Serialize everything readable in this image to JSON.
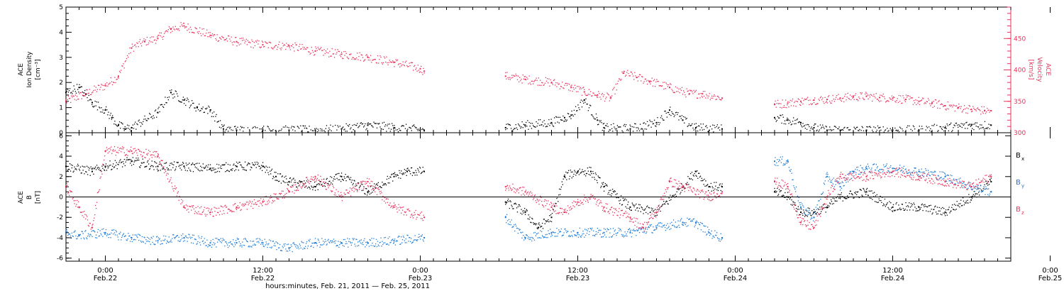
{
  "chart_data": [
    {
      "type": "scatter",
      "panel": "top",
      "ylabel_left": [
        "ACE",
        "Ion Density",
        "[cm⁻³]"
      ],
      "ylabel_right": [
        "ACE",
        "Velocity",
        "[km/s]"
      ],
      "ylim_left": [
        0,
        5
      ],
      "ylim_right": [
        300,
        500
      ],
      "yticks_left": [
        "0",
        "1",
        "2",
        "3",
        "4",
        "5"
      ],
      "yticks_right": [
        "300",
        "350",
        "400",
        "450"
      ],
      "xlim_hours": [
        -3,
        69
      ],
      "series": [
        {
          "axis": "right",
          "color": "#e8305a",
          "segments": [
            {
              "x": [
                -3,
                -1.5,
                0,
                1,
                2,
                3,
                4,
                5,
                6,
                8,
                10,
                12,
                14,
                16,
                18,
                20,
                22,
                24,
                24.3
              ],
              "y": [
                350,
                362,
                375,
                390,
                435,
                445,
                450,
                465,
                470,
                455,
                445,
                440,
                438,
                430,
                425,
                420,
                412,
                402,
                398
              ]
            },
            {
              "x": [
                30.5,
                32,
                34,
                35.5,
                36.5,
                37.5,
                38.5,
                39.5,
                40.5,
                41.5,
                43,
                44.5,
                45.5,
                47
              ],
              "y": [
                390,
                385,
                380,
                372,
                365,
                360,
                355,
                395,
                388,
                382,
                372,
                362,
                362,
                355
              ]
            },
            {
              "x": [
                51,
                52,
                53,
                54,
                55,
                56,
                57,
                58,
                59,
                60,
                61,
                62,
                63,
                64,
                65,
                66,
                67,
                67.5
              ],
              "y": [
                345,
                347,
                350,
                352,
                353,
                355,
                357,
                358,
                356,
                355,
                353,
                350,
                347,
                343,
                340,
                337,
                335,
                335
              ]
            }
          ]
        },
        {
          "axis": "left",
          "color": "#000000",
          "segments": [
            {
              "x": [
                -3,
                -2,
                -1,
                0,
                0.5,
                1,
                1.5,
                2,
                4,
                5,
                6,
                7,
                8,
                9,
                10,
                12,
                14,
                16,
                18,
                20,
                22,
                24.3
              ],
              "y": [
                1.6,
                1.8,
                1.2,
                0.9,
                0.6,
                0.3,
                0.15,
                0.2,
                0.8,
                1.6,
                1.3,
                1.0,
                0.9,
                0.15,
                0.1,
                0.1,
                0.1,
                0.1,
                0.15,
                0.3,
                0.2,
                0.1
              ]
            },
            {
              "x": [
                30.5,
                32,
                34,
                35,
                35.5,
                36.5,
                37.5,
                38,
                40,
                42,
                43,
                44,
                45,
                47
              ],
              "y": [
                0.2,
                0.3,
                0.4,
                0.6,
                0.7,
                1.3,
                0.5,
                0.2,
                0.15,
                0.4,
                0.9,
                0.5,
                0.2,
                0.15
              ]
            },
            {
              "x": [
                51,
                52,
                53,
                54,
                55,
                56,
                58,
                60,
                62,
                64,
                66,
                67.5
              ],
              "y": [
                0.6,
                0.5,
                0.4,
                0.2,
                0.1,
                0.1,
                0.1,
                0.1,
                0.1,
                0.2,
                0.3,
                0.3
              ]
            }
          ]
        }
      ]
    },
    {
      "type": "scatter",
      "panel": "bottom",
      "ylabel_left": [
        "ACE",
        "B",
        "[nT]"
      ],
      "ylim": [
        -6.3,
        6.3
      ],
      "yticks": [
        "-6",
        "-4",
        "-2",
        "0",
        "2",
        "4",
        "6"
      ],
      "zero_line": true,
      "xlim_hours": [
        -3,
        69
      ],
      "legend": [
        {
          "label": "B",
          "sub": "x",
          "color": "#000000"
        },
        {
          "label": "B",
          "sub": "y",
          "color": "#1a7ad6"
        },
        {
          "label": "B",
          "sub": "z",
          "color": "#e8305a"
        }
      ],
      "series": [
        {
          "name": "Bx",
          "color": "#000000",
          "segments": [
            {
              "x": [
                -3,
                -1,
                0,
                2,
                4,
                6,
                8,
                10,
                12,
                13,
                14,
                16,
                18,
                20,
                22,
                23,
                24.3
              ],
              "y": [
                3.0,
                2.5,
                3.0,
                3.5,
                3.0,
                3.0,
                2.8,
                3.0,
                3.0,
                2.0,
                1.5,
                1.0,
                2.0,
                0.5,
                2.0,
                2.5,
                2.5
              ]
            },
            {
              "x": [
                30.5,
                32,
                33,
                34,
                35,
                36,
                37,
                38,
                40,
                42,
                44,
                45,
                46,
                47
              ],
              "y": [
                -0.5,
                -1.5,
                -3.0,
                -2.0,
                2.0,
                2.5,
                2.5,
                1.0,
                -1.0,
                -1.5,
                1.0,
                2.5,
                1.0,
                1.0
              ]
            },
            {
              "x": [
                51,
                52,
                53,
                54,
                55,
                56,
                58,
                60,
                62,
                64,
                66,
                67.5
              ],
              "y": [
                0.5,
                0.0,
                -1.5,
                -1.5,
                -1.0,
                0.0,
                0.5,
                -1.0,
                -1.0,
                -1.5,
                0.0,
                1.5
              ]
            }
          ]
        },
        {
          "name": "By",
          "color": "#1a7ad6",
          "segments": [
            {
              "x": [
                -3,
                -2,
                0,
                2,
                4,
                6,
                8,
                10,
                12,
                14,
                16,
                18,
                20,
                22,
                24.3
              ],
              "y": [
                -3.5,
                -3.8,
                -3.5,
                -4.0,
                -4.3,
                -4.0,
                -4.5,
                -4.5,
                -4.5,
                -5.0,
                -4.5,
                -4.5,
                -4.5,
                -4.3,
                -4.0
              ]
            },
            {
              "x": [
                30.5,
                32,
                34,
                36,
                38,
                40,
                42,
                44,
                45,
                46,
                47
              ],
              "y": [
                -2.0,
                -4.0,
                -3.5,
                -3.5,
                -3.5,
                -3.5,
                -3.0,
                -2.5,
                -2.5,
                -3.5,
                -4.0
              ]
            },
            {
              "x": [
                51,
                52,
                53,
                54,
                55,
                56,
                57,
                58,
                60,
                62,
                64,
                66,
                67.5
              ],
              "y": [
                3.5,
                3.5,
                -1.0,
                -2.0,
                2.0,
                1.0,
                2.5,
                2.8,
                2.8,
                2.5,
                2.0,
                1.0,
                0.5
              ]
            }
          ]
        },
        {
          "name": "Bz",
          "color": "#e8305a",
          "segments": [
            {
              "x": [
                -3,
                -2,
                -1,
                0,
                2,
                4,
                6,
                8,
                10,
                12,
                14,
                16,
                18,
                20,
                22,
                24.3
              ],
              "y": [
                1.0,
                -1.0,
                -3.0,
                4.5,
                4.5,
                4.0,
                -1.0,
                -1.5,
                -1.0,
                -0.5,
                0.5,
                2.0,
                0.0,
                1.5,
                -1.0,
                -2.0
              ]
            },
            {
              "x": [
                30.5,
                32,
                34,
                35,
                36,
                37,
                38,
                40,
                41,
                42,
                43,
                44,
                46,
                47
              ],
              "y": [
                1.0,
                0.5,
                -1.0,
                -1.5,
                -0.5,
                0.0,
                -1.0,
                -2.0,
                -3.0,
                -1.5,
                1.5,
                1.0,
                0.0,
                0.5
              ]
            },
            {
              "x": [
                51,
                52,
                53,
                54,
                55,
                56,
                58,
                60,
                62,
                64,
                66,
                67.5
              ],
              "y": [
                1.5,
                1.0,
                -2.5,
                -3.0,
                0.0,
                2.0,
                2.0,
                2.5,
                2.0,
                1.5,
                1.0,
                2.0
              ]
            }
          ]
        }
      ]
    }
  ],
  "x_axis": {
    "major_ticks": [
      {
        "hours": 0,
        "time": "0:00",
        "date": "Feb.22"
      },
      {
        "hours": 12,
        "time": "12:00",
        "date": "Feb.22"
      },
      {
        "hours": 24,
        "time": "0:00",
        "date": "Feb.23"
      },
      {
        "hours": 36,
        "time": "12:00",
        "date": "Feb.23"
      },
      {
        "hours": 48,
        "time": "0:00",
        "date": "Feb.24"
      },
      {
        "hours": 60,
        "time": "12:00",
        "date": "Feb.24"
      },
      {
        "hours": 72,
        "time": "0:00",
        "date": "Feb.25"
      }
    ],
    "minor_step_hours": 1,
    "label": "hours:minutes, Feb. 21, 2011 — Feb. 25, 2011"
  },
  "colors": {
    "density": "#000000",
    "velocity": "#e8305a",
    "bx": "#000000",
    "by": "#1a7ad6",
    "bz": "#e8305a"
  }
}
